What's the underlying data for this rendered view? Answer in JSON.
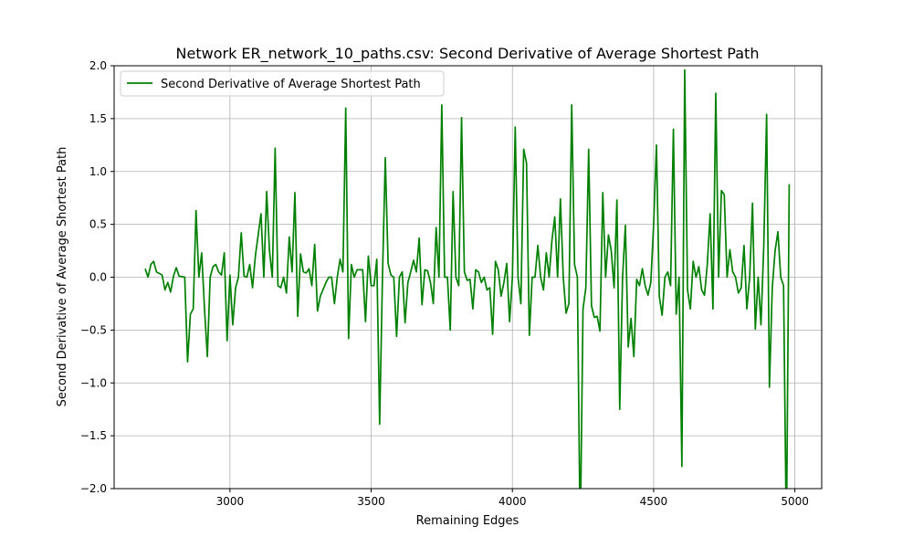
{
  "chart_data": {
    "type": "line",
    "title": "Network ER_network_10_paths.csv: Second Derivative of Average Shortest Path",
    "xlabel": "Remaining Edges",
    "ylabel": "Second Derivative of Average Shortest Path",
    "xlim": [
      2590,
      5095
    ],
    "ylim": [
      -2.0,
      2.0
    ],
    "xticks": [
      3000,
      3500,
      4000,
      4500,
      5000
    ],
    "yticks": [
      -2.0,
      -1.5,
      -1.0,
      -0.5,
      0.0,
      0.5,
      1.0,
      1.5,
      2.0
    ],
    "xtick_labels": [
      "3000",
      "3500",
      "4000",
      "4500",
      "5000"
    ],
    "ytick_labels": [
      "−2.0",
      "−1.5",
      "−1.0",
      "−0.5",
      "0.0",
      "0.5",
      "1.0",
      "1.5",
      "2.0"
    ],
    "grid": true,
    "legend_position": "top-left",
    "series": [
      {
        "name": "Second Derivative of Average Shortest Path",
        "color": "#008000",
        "points": [
          [
            2700,
            0.08
          ],
          [
            2710,
            0.0
          ],
          [
            2720,
            0.12
          ],
          [
            2730,
            0.15
          ],
          [
            2740,
            0.05
          ],
          [
            2760,
            0.02
          ],
          [
            2770,
            -0.12
          ],
          [
            2780,
            -0.05
          ],
          [
            2790,
            -0.14
          ],
          [
            2800,
            0.01
          ],
          [
            2810,
            0.09
          ],
          [
            2820,
            0.01
          ],
          [
            2840,
            0.0
          ],
          [
            2850,
            -0.8
          ],
          [
            2860,
            -0.35
          ],
          [
            2870,
            -0.3
          ],
          [
            2880,
            0.63
          ],
          [
            2890,
            0.0
          ],
          [
            2900,
            0.23
          ],
          [
            2910,
            -0.3
          ],
          [
            2920,
            -0.75
          ],
          [
            2930,
            0.0
          ],
          [
            2940,
            0.1
          ],
          [
            2950,
            0.12
          ],
          [
            2960,
            0.05
          ],
          [
            2970,
            0.02
          ],
          [
            2980,
            0.23
          ],
          [
            2990,
            -0.6
          ],
          [
            3000,
            0.02
          ],
          [
            3010,
            -0.45
          ],
          [
            3020,
            -0.1
          ],
          [
            3030,
            0.0
          ],
          [
            3040,
            0.42
          ],
          [
            3050,
            0.01
          ],
          [
            3060,
            0.0
          ],
          [
            3070,
            0.12
          ],
          [
            3080,
            -0.1
          ],
          [
            3090,
            0.2
          ],
          [
            3110,
            0.6
          ],
          [
            3120,
            0.0
          ],
          [
            3130,
            0.81
          ],
          [
            3140,
            0.25
          ],
          [
            3150,
            0.0
          ],
          [
            3160,
            1.22
          ],
          [
            3170,
            -0.08
          ],
          [
            3180,
            -0.1
          ],
          [
            3190,
            0.0
          ],
          [
            3200,
            -0.15
          ],
          [
            3210,
            0.38
          ],
          [
            3220,
            0.05
          ],
          [
            3230,
            0.8
          ],
          [
            3240,
            -0.37
          ],
          [
            3250,
            0.22
          ],
          [
            3260,
            0.05
          ],
          [
            3270,
            0.04
          ],
          [
            3280,
            0.08
          ],
          [
            3290,
            -0.08
          ],
          [
            3300,
            0.31
          ],
          [
            3310,
            -0.32
          ],
          [
            3320,
            -0.18
          ],
          [
            3340,
            -0.05
          ],
          [
            3350,
            0.0
          ],
          [
            3360,
            0.0
          ],
          [
            3370,
            -0.25
          ],
          [
            3380,
            0.0
          ],
          [
            3390,
            0.17
          ],
          [
            3400,
            0.05
          ],
          [
            3410,
            1.6
          ],
          [
            3420,
            -0.58
          ],
          [
            3430,
            0.12
          ],
          [
            3440,
            0.0
          ],
          [
            3450,
            0.07
          ],
          [
            3470,
            0.07
          ],
          [
            3480,
            -0.42
          ],
          [
            3490,
            0.2
          ],
          [
            3500,
            -0.08
          ],
          [
            3510,
            -0.08
          ],
          [
            3520,
            0.17
          ],
          [
            3530,
            -1.39
          ],
          [
            3540,
            0.0
          ],
          [
            3550,
            1.13
          ],
          [
            3560,
            0.13
          ],
          [
            3570,
            0.02
          ],
          [
            3580,
            0.0
          ],
          [
            3590,
            -0.56
          ],
          [
            3600,
            0.0
          ],
          [
            3610,
            0.05
          ],
          [
            3620,
            -0.43
          ],
          [
            3630,
            -0.05
          ],
          [
            3640,
            0.05
          ],
          [
            3650,
            0.16
          ],
          [
            3660,
            0.05
          ],
          [
            3670,
            0.37
          ],
          [
            3680,
            -0.26
          ],
          [
            3690,
            0.07
          ],
          [
            3700,
            0.06
          ],
          [
            3710,
            -0.05
          ],
          [
            3720,
            -0.25
          ],
          [
            3730,
            0.47
          ],
          [
            3740,
            0.0
          ],
          [
            3750,
            1.63
          ],
          [
            3760,
            0.0
          ],
          [
            3770,
            0.0
          ],
          [
            3780,
            -0.5
          ],
          [
            3790,
            0.81
          ],
          [
            3800,
            0.0
          ],
          [
            3810,
            -0.08
          ],
          [
            3820,
            1.51
          ],
          [
            3830,
            0.05
          ],
          [
            3840,
            -0.03
          ],
          [
            3850,
            -0.02
          ],
          [
            3860,
            -0.3
          ],
          [
            3870,
            0.07
          ],
          [
            3880,
            0.05
          ],
          [
            3890,
            -0.05
          ],
          [
            3900,
            0.0
          ],
          [
            3910,
            -0.12
          ],
          [
            3920,
            -0.1
          ],
          [
            3930,
            -0.54
          ],
          [
            3940,
            0.15
          ],
          [
            3950,
            0.07
          ],
          [
            3960,
            -0.18
          ],
          [
            3970,
            -0.05
          ],
          [
            3980,
            0.13
          ],
          [
            3990,
            -0.42
          ],
          [
            4000,
            0.0
          ],
          [
            4010,
            1.42
          ],
          [
            4020,
            0.0
          ],
          [
            4030,
            -0.25
          ],
          [
            4040,
            1.21
          ],
          [
            4050,
            1.08
          ],
          [
            4060,
            -0.55
          ],
          [
            4070,
            0.0
          ],
          [
            4080,
            0.0
          ],
          [
            4090,
            0.3
          ],
          [
            4100,
            0.0
          ],
          [
            4110,
            -0.12
          ],
          [
            4120,
            0.23
          ],
          [
            4130,
            0.0
          ],
          [
            4140,
            0.35
          ],
          [
            4150,
            0.57
          ],
          [
            4160,
            0.0
          ],
          [
            4170,
            0.74
          ],
          [
            4180,
            0.0
          ],
          [
            4190,
            -0.34
          ],
          [
            4200,
            -0.25
          ],
          [
            4210,
            1.63
          ],
          [
            4220,
            0.12
          ],
          [
            4230,
            0.0
          ],
          [
            4240,
            -2.5
          ],
          [
            4250,
            -0.3
          ],
          [
            4260,
            -0.1
          ],
          [
            4270,
            1.21
          ],
          [
            4280,
            -0.27
          ],
          [
            4290,
            -0.38
          ],
          [
            4300,
            -0.37
          ],
          [
            4310,
            -0.51
          ],
          [
            4320,
            0.8
          ],
          [
            4330,
            0.0
          ],
          [
            4340,
            0.4
          ],
          [
            4350,
            0.25
          ],
          [
            4360,
            -0.1
          ],
          [
            4370,
            0.73
          ],
          [
            4380,
            -1.25
          ],
          [
            4390,
            0.0
          ],
          [
            4400,
            0.49
          ],
          [
            4410,
            -0.66
          ],
          [
            4420,
            -0.39
          ],
          [
            4430,
            -0.75
          ],
          [
            4440,
            -0.02
          ],
          [
            4450,
            -0.08
          ],
          [
            4460,
            0.08
          ],
          [
            4470,
            -0.08
          ],
          [
            4480,
            -0.17
          ],
          [
            4490,
            -0.05
          ],
          [
            4500,
            0.5
          ],
          [
            4510,
            1.25
          ],
          [
            4520,
            -0.18
          ],
          [
            4530,
            -0.36
          ],
          [
            4540,
            0.0
          ],
          [
            4550,
            0.05
          ],
          [
            4560,
            -0.08
          ],
          [
            4570,
            1.4
          ],
          [
            4580,
            -0.35
          ],
          [
            4590,
            0.0
          ],
          [
            4600,
            -1.79
          ],
          [
            4610,
            1.96
          ],
          [
            4620,
            -0.12
          ],
          [
            4630,
            -0.3
          ],
          [
            4640,
            0.15
          ],
          [
            4650,
            0.0
          ],
          [
            4660,
            0.1
          ],
          [
            4670,
            -0.12
          ],
          [
            4680,
            -0.17
          ],
          [
            4690,
            0.12
          ],
          [
            4700,
            0.6
          ],
          [
            4710,
            -0.3
          ],
          [
            4720,
            1.74
          ],
          [
            4730,
            0.0
          ],
          [
            4740,
            0.82
          ],
          [
            4750,
            0.78
          ],
          [
            4760,
            0.0
          ],
          [
            4770,
            0.26
          ],
          [
            4780,
            0.05
          ],
          [
            4790,
            0.0
          ],
          [
            4800,
            -0.15
          ],
          [
            4810,
            -0.1
          ],
          [
            4820,
            0.3
          ],
          [
            4830,
            -0.3
          ],
          [
            4840,
            0.0
          ],
          [
            4850,
            0.7
          ],
          [
            4860,
            -0.49
          ],
          [
            4870,
            0.0
          ],
          [
            4880,
            -0.45
          ],
          [
            4890,
            0.3
          ],
          [
            4900,
            1.54
          ],
          [
            4910,
            -1.04
          ],
          [
            4920,
            -0.1
          ],
          [
            4930,
            0.25
          ],
          [
            4940,
            0.43
          ],
          [
            4950,
            0.0
          ],
          [
            4960,
            -0.08
          ],
          [
            4970,
            -2.5
          ],
          [
            4980,
            0.88
          ]
        ]
      }
    ]
  }
}
